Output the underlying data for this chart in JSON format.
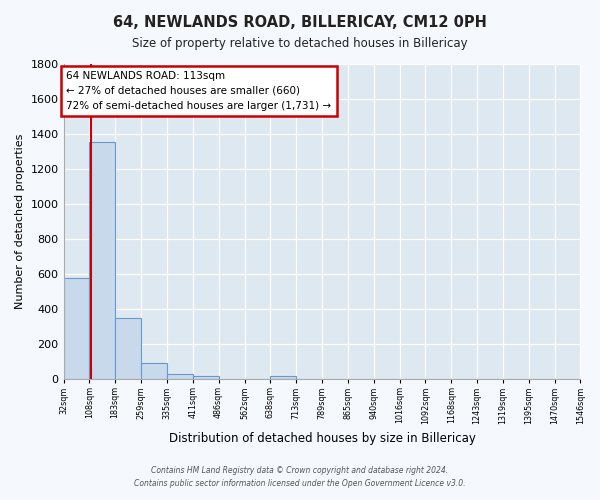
{
  "title": "64, NEWLANDS ROAD, BILLERICAY, CM12 0PH",
  "subtitle": "Size of property relative to detached houses in Billericay",
  "xlabel": "Distribution of detached houses by size in Billericay",
  "ylabel": "Number of detached properties",
  "bin_edges": [
    32,
    108,
    183,
    259,
    335,
    411,
    486,
    562,
    638,
    713,
    789,
    865,
    940,
    1016,
    1092,
    1168,
    1243,
    1319,
    1395,
    1470,
    1546
  ],
  "bin_labels": [
    "32sqm",
    "108sqm",
    "183sqm",
    "259sqm",
    "335sqm",
    "411sqm",
    "486sqm",
    "562sqm",
    "638sqm",
    "713sqm",
    "789sqm",
    "865sqm",
    "940sqm",
    "1016sqm",
    "1092sqm",
    "1168sqm",
    "1243sqm",
    "1319sqm",
    "1395sqm",
    "1470sqm",
    "1546sqm"
  ],
  "bar_heights": [
    580,
    1355,
    350,
    92,
    30,
    18,
    0,
    0,
    18,
    0,
    0,
    0,
    0,
    0,
    0,
    0,
    0,
    0,
    0,
    0
  ],
  "bar_color": "#c9d9ec",
  "bar_edge_color": "#6699cc",
  "property_line_x": 113,
  "property_line_color": "#cc0000",
  "annotation_title": "64 NEWLANDS ROAD: 113sqm",
  "annotation_line1": "← 27% of detached houses are smaller (660)",
  "annotation_line2": "72% of semi-detached houses are larger (1,731) →",
  "annotation_box_facecolor": "#ffffff",
  "annotation_box_edgecolor": "#cc0000",
  "ylim": [
    0,
    1800
  ],
  "xlim_left": 32,
  "xlim_right": 1546,
  "bg_color": "#dde8f0",
  "grid_color": "#ffffff",
  "yticks": [
    0,
    200,
    400,
    600,
    800,
    1000,
    1200,
    1400,
    1600,
    1800
  ],
  "footer1": "Contains HM Land Registry data © Crown copyright and database right 2024.",
  "footer2": "Contains public sector information licensed under the Open Government Licence v3.0."
}
